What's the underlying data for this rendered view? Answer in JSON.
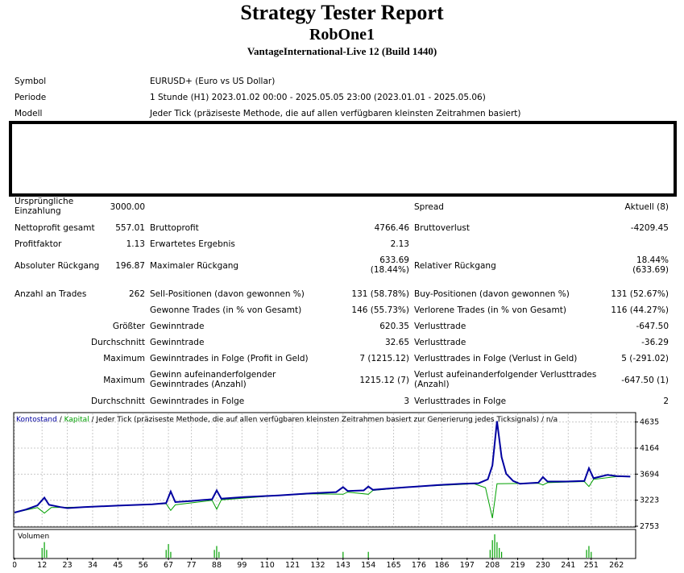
{
  "header": {
    "title": "Strategy Tester Report",
    "expert": "RobOne1",
    "server": "VantageInternational-Live 12 (Build 1440)"
  },
  "settings": [
    {
      "label": "Symbol",
      "value": "EURUSD+ (Euro vs US Dollar)"
    },
    {
      "label": "Periode",
      "value": "1 Stunde (H1) 2023.01.02 00:00 - 2025.05.05 23:00 (2023.01.01 - 2025.05.06)"
    },
    {
      "label": "Modell",
      "value": "Jeder Tick (präziseste Methode, die auf allen verfügbaren kleinsten Zeitrahmen basiert)"
    }
  ],
  "stats": {
    "initial_deposit_label": "Ursprüngliche Einzahlung",
    "initial_deposit": "3000.00",
    "spread_label": "Spread",
    "spread": "Aktuell (8)",
    "net_profit_label": "Nettoprofit gesamt",
    "net_profit": "557.01",
    "gross_profit_label": "Bruttoprofit",
    "gross_profit": "4766.46",
    "gross_loss_label": "Bruttoverlust",
    "gross_loss": "-4209.45",
    "profit_factor_label": "Profitfaktor",
    "profit_factor": "1.13",
    "expected_payoff_label": "Erwartetes Ergebnis",
    "expected_payoff": "2.13",
    "abs_drawdown_label": "Absoluter Rückgang",
    "abs_drawdown": "196.87",
    "max_drawdown_label": "Maximaler Rückgang",
    "max_drawdown": "633.69 (18.44%)",
    "rel_drawdown_label": "Relativer Rückgang",
    "rel_drawdown": "18.44% (633.69)",
    "total_trades_label": "Anzahl an Trades",
    "total_trades": "262",
    "short_label": "Sell-Positionen (davon gewonnen %)",
    "short": "131 (58.78%)",
    "long_label": "Buy-Positionen (davon gewonnen %)",
    "long": "131 (52.67%)",
    "profit_trades_label": "Gewonne Trades (in % von Gesamt)",
    "profit_trades": "146 (55.73%)",
    "loss_trades_label": "Verlorene Trades (in % von Gesamt)",
    "loss_trades": "116 (44.27%)",
    "largest_label": "Größter",
    "largest_profit_label": "Gewinntrade",
    "largest_profit": "620.35",
    "largest_loss_label": "Verlusttrade",
    "largest_loss": "-647.50",
    "average_label": "Durchschnitt",
    "average_profit_label": "Gewinntrade",
    "average_profit": "32.65",
    "average_loss_label": "Verlusttrade",
    "average_loss": "-36.29",
    "maximum_label": "Maximum",
    "max_cons_wins_label": "Gewinntrades in Folge (Profit in Geld)",
    "max_cons_wins": "7 (1215.12)",
    "max_cons_losses_label": "Verlusttrades in Folge (Verlust in Geld)",
    "max_cons_losses": "5 (-291.02)",
    "maximal_label": "Maximum",
    "maximal_wins_label": "Gewinn aufeinanderfolgender Gewinntrades (Anzahl)",
    "maximal_wins": "1215.12 (7)",
    "maximal_losses_label": "Verlust aufeinanderfolgender Verlusttrades (Anzahl)",
    "maximal_losses": "-647.50 (1)",
    "avg_cons_label": "Durchschnitt",
    "avg_cons_wins_label": "Gewinntrades in Folge",
    "avg_cons_wins": "3",
    "avg_cons_losses_label": "Verlusttrades in Folge",
    "avg_cons_losses": "2"
  },
  "chart_data": {
    "type": "line",
    "legend": {
      "balance": "Kontostand",
      "sep1": " / ",
      "equity": "Kapital",
      "desc": " / Jeder Tick (präziseste Methode, die auf allen verfügbaren kleinsten Zeitrahmen basiert zur Generierung jedes Ticksignals) / n/a"
    },
    "volume_label": "Volumen",
    "colors": {
      "balance": "#0000a0",
      "equity": "#00a000",
      "volume": "#00a000",
      "grid": "#c8c8c8"
    },
    "ylim": [
      2753,
      4790
    ],
    "yticks": [
      4635,
      4164,
      3694,
      3223,
      2753
    ],
    "xlim": [
      0,
      270
    ],
    "xticks": [
      0,
      12,
      23,
      34,
      45,
      56,
      67,
      77,
      88,
      99,
      110,
      121,
      132,
      143,
      154,
      165,
      176,
      186,
      197,
      208,
      219,
      230,
      241,
      251,
      262
    ],
    "balance": [
      [
        0,
        3000
      ],
      [
        5,
        3055
      ],
      [
        10,
        3130
      ],
      [
        13,
        3270
      ],
      [
        15,
        3140
      ],
      [
        20,
        3100
      ],
      [
        23,
        3080
      ],
      [
        30,
        3100
      ],
      [
        45,
        3125
      ],
      [
        60,
        3150
      ],
      [
        66,
        3170
      ],
      [
        68,
        3380
      ],
      [
        70,
        3190
      ],
      [
        77,
        3210
      ],
      [
        86,
        3240
      ],
      [
        88,
        3400
      ],
      [
        90,
        3250
      ],
      [
        100,
        3280
      ],
      [
        115,
        3310
      ],
      [
        130,
        3350
      ],
      [
        140,
        3370
      ],
      [
        143,
        3460
      ],
      [
        145,
        3390
      ],
      [
        152,
        3400
      ],
      [
        154,
        3470
      ],
      [
        156,
        3410
      ],
      [
        165,
        3440
      ],
      [
        175,
        3470
      ],
      [
        185,
        3500
      ],
      [
        195,
        3520
      ],
      [
        202,
        3530
      ],
      [
        206,
        3600
      ],
      [
        208,
        3850
      ],
      [
        210,
        4650
      ],
      [
        212,
        4000
      ],
      [
        214,
        3700
      ],
      [
        217,
        3570
      ],
      [
        220,
        3520
      ],
      [
        228,
        3540
      ],
      [
        230,
        3640
      ],
      [
        232,
        3560
      ],
      [
        240,
        3560
      ],
      [
        248,
        3570
      ],
      [
        250,
        3800
      ],
      [
        252,
        3620
      ],
      [
        258,
        3680
      ],
      [
        262,
        3660
      ],
      [
        268,
        3650
      ]
    ],
    "equity": [
      [
        0,
        3000
      ],
      [
        10,
        3090
      ],
      [
        13,
        2990
      ],
      [
        16,
        3090
      ],
      [
        30,
        3100
      ],
      [
        45,
        3125
      ],
      [
        60,
        3150
      ],
      [
        66,
        3160
      ],
      [
        68,
        3040
      ],
      [
        70,
        3140
      ],
      [
        86,
        3220
      ],
      [
        88,
        3060
      ],
      [
        90,
        3230
      ],
      [
        115,
        3310
      ],
      [
        130,
        3340
      ],
      [
        143,
        3330
      ],
      [
        145,
        3370
      ],
      [
        154,
        3330
      ],
      [
        156,
        3400
      ],
      [
        175,
        3470
      ],
      [
        195,
        3510
      ],
      [
        200,
        3520
      ],
      [
        205,
        3450
      ],
      [
        208,
        2900
      ],
      [
        210,
        3520
      ],
      [
        228,
        3530
      ],
      [
        230,
        3500
      ],
      [
        232,
        3540
      ],
      [
        248,
        3560
      ],
      [
        250,
        3470
      ],
      [
        252,
        3600
      ],
      [
        262,
        3650
      ],
      [
        268,
        3650
      ]
    ],
    "volume": [
      [
        12,
        5
      ],
      [
        13,
        8
      ],
      [
        14,
        4
      ],
      [
        66,
        4
      ],
      [
        67,
        7
      ],
      [
        68,
        3
      ],
      [
        87,
        4
      ],
      [
        88,
        6
      ],
      [
        89,
        3
      ],
      [
        143,
        3
      ],
      [
        154,
        3
      ],
      [
        207,
        4
      ],
      [
        208,
        9
      ],
      [
        209,
        12
      ],
      [
        210,
        8
      ],
      [
        211,
        5
      ],
      [
        212,
        3
      ],
      [
        249,
        4
      ],
      [
        250,
        6
      ],
      [
        251,
        3
      ]
    ]
  }
}
